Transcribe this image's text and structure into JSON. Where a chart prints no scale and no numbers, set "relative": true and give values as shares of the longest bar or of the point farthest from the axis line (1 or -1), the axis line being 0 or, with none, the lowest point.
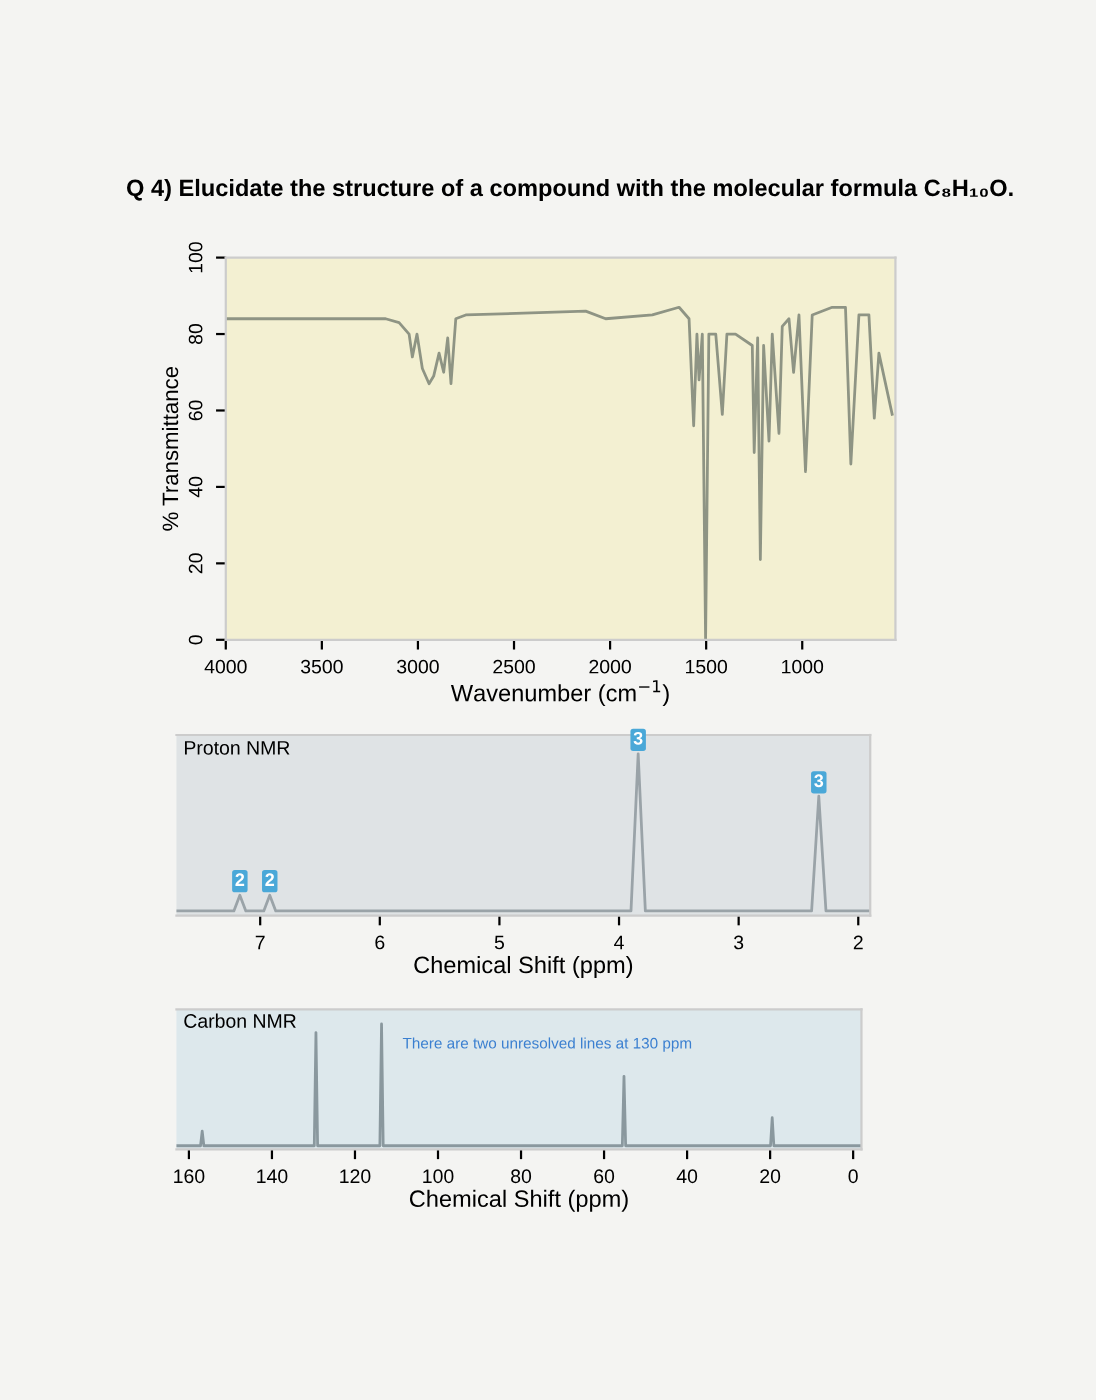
{
  "chart_data": [
    {
      "type": "line",
      "title": "Q 4) Elucidate the structure of a compound with the molecular formula C₈H₁₀O.",
      "xlabel": "Wavenumber (cm$^{−1}$)",
      "ylabel": "% Transmittance",
      "x": [
        4000,
        3168,
        3098,
        3046,
        3029,
        3005,
        2977,
        2942,
        2918,
        2890,
        2866,
        2845,
        2828,
        2803,
        2751,
        2127,
        2023,
        1780,
        1641,
        1589,
        1565,
        1548,
        1537,
        1520,
        1503,
        1486,
        1450,
        1416,
        1392,
        1347,
        1260,
        1250,
        1232,
        1218,
        1201,
        1173,
        1156,
        1121,
        1104,
        1069,
        1045,
        1017,
        983,
        948,
        844,
        775,
        747,
        705,
        653,
        625,
        601,
        532
      ],
      "series": [
        {
          "color": "#8e9484",
          "values": [
            84,
            84,
            83,
            80,
            74,
            80,
            71,
            67,
            69,
            75,
            70,
            79,
            67,
            84,
            85,
            86,
            84,
            85,
            87,
            84,
            56,
            80,
            68,
            80,
            0,
            80,
            80,
            59,
            80,
            80,
            77,
            49,
            79,
            21,
            77,
            52,
            80,
            54,
            82,
            84,
            70,
            85,
            44,
            85,
            87,
            87,
            46,
            85,
            85,
            58,
            75,
            59
          ]
        }
      ],
      "xlim": [
        4000,
        515
      ],
      "xticks": [
        4000,
        3500,
        3000,
        2500,
        2000,
        1500,
        1000
      ],
      "ylim": [
        0,
        100
      ],
      "yticks": [
        0,
        20,
        40,
        60,
        80,
        100
      ]
    },
    {
      "type": "line",
      "relative": true,
      "xlabel": "Chemical Shift (ppm)",
      "annotations": [
        "Proton NMR",
        {
          "text": "2",
          "x": 7.17,
          "y": 0.1
        },
        {
          "text": "2",
          "x": 6.92,
          "y": 0.1
        },
        {
          "text": "3",
          "x": 3.84,
          "y": 1
        },
        {
          "text": "3",
          "x": 2.33,
          "y": 0.73
        }
      ],
      "x": [
        7.7,
        7.22,
        7.17,
        7.12,
        6.97,
        6.92,
        6.87,
        3.9,
        3.84,
        3.78,
        2.39,
        2.33,
        2.27,
        1.9
      ],
      "series": [
        {
          "color": "#9aa3a8",
          "values": [
            0,
            0,
            0.1,
            0,
            0,
            0.1,
            0,
            0,
            1,
            0,
            0,
            0.73,
            0,
            0
          ]
        }
      ],
      "xlim": [
        7.7,
        1.9
      ],
      "xticks": [
        7,
        6,
        5,
        4,
        3,
        2
      ],
      "tick_labels": "x"
    },
    {
      "type": "line",
      "relative": true,
      "xlabel": "Chemical Shift (ppm)",
      "annotations": [
        "Carbon NMR",
        "There are two unresolved lines at 130 ppm"
      ],
      "x": [
        163,
        157.2,
        156.8,
        156.4,
        129.8,
        129.4,
        129.0,
        114.0,
        113.6,
        113.2,
        55.6,
        55.2,
        54.8,
        19.9,
        19.5,
        19.1,
        -2
      ],
      "series": [
        {
          "color": "#8a989e",
          "values": [
            0,
            0,
            0.12,
            0,
            0,
            0.93,
            0,
            0,
            1,
            0,
            0,
            0.57,
            0,
            0,
            0.23,
            0,
            0
          ]
        }
      ],
      "xlim": [
        163,
        -2
      ],
      "xticks": [
        160,
        140,
        120,
        100,
        80,
        60,
        40,
        20,
        0
      ],
      "tick_labels": "x"
    }
  ]
}
